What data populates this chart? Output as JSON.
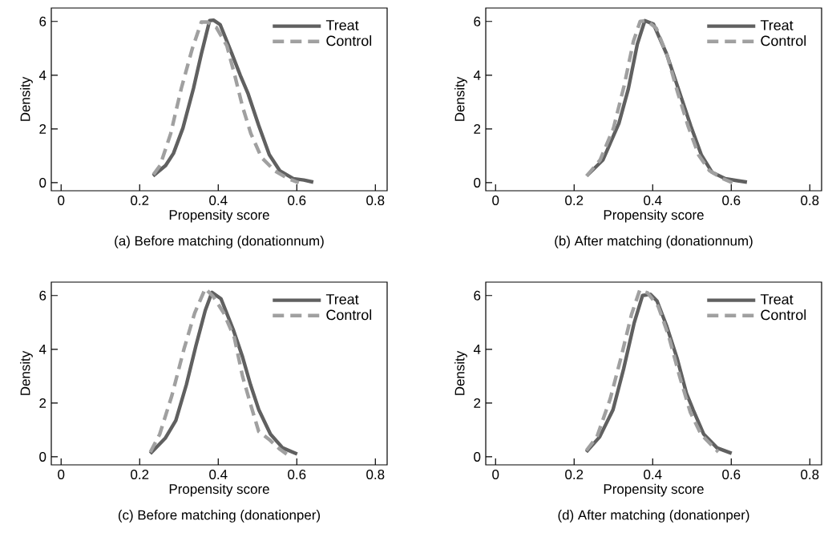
{
  "chart_data": [
    {
      "type": "line",
      "title": "(a) Before matching (donationnum)",
      "xlabel": "Propensity score",
      "ylabel": "Density",
      "xlim": [
        -0.025,
        0.83
      ],
      "ylim": [
        -0.3,
        6.5
      ],
      "xticks": [
        0,
        0.2,
        0.4,
        0.6,
        0.8
      ],
      "yticks": [
        0,
        2,
        4,
        6
      ],
      "legend": "top right",
      "series": [
        {
          "name": "Treat",
          "color": "#606060",
          "line_style": "solid",
          "x": [
            0.234,
            0.266,
            0.286,
            0.31,
            0.337,
            0.357,
            0.378,
            0.388,
            0.405,
            0.435,
            0.456,
            0.476,
            0.503,
            0.53,
            0.557,
            0.591,
            0.618,
            0.642
          ],
          "values": [
            0.25,
            0.64,
            1.09,
            2.03,
            3.51,
            4.79,
            6.03,
            6.05,
            5.88,
            4.79,
            4.0,
            3.31,
            2.13,
            1.04,
            0.44,
            0.15,
            0.1,
            0.02
          ]
        },
        {
          "name": "Control",
          "color": "#a0a0a0",
          "line_style": "dashed",
          "x": [
            0.235,
            0.252,
            0.279,
            0.306,
            0.334,
            0.357,
            0.371,
            0.395,
            0.422,
            0.442,
            0.462,
            0.483,
            0.51,
            0.544,
            0.578,
            0.605
          ],
          "values": [
            0.3,
            0.64,
            1.83,
            3.51,
            4.99,
            5.98,
            5.98,
            5.78,
            5.09,
            4.0,
            2.82,
            1.83,
            0.94,
            0.44,
            0.15,
            0.0
          ]
        }
      ]
    },
    {
      "type": "line",
      "title": "(b) After matching (donationnum)",
      "xlabel": "Propensity score",
      "ylabel": "Density",
      "xlim": [
        -0.025,
        0.83
      ],
      "ylim": [
        -0.3,
        6.5
      ],
      "xticks": [
        0,
        0.2,
        0.4,
        0.6,
        0.8
      ],
      "yticks": [
        0,
        2,
        4,
        6
      ],
      "legend": "top right",
      "series": [
        {
          "name": "Treat",
          "color": "#606060",
          "line_style": "solid",
          "x": [
            0.232,
            0.273,
            0.314,
            0.338,
            0.361,
            0.38,
            0.402,
            0.436,
            0.47,
            0.497,
            0.524,
            0.551,
            0.585,
            0.613,
            0.64
          ],
          "values": [
            0.25,
            0.84,
            2.21,
            3.49,
            5.16,
            6.03,
            5.9,
            4.77,
            3.29,
            2.11,
            1.03,
            0.39,
            0.15,
            0.08,
            0.02
          ]
        },
        {
          "name": "Control",
          "color": "#a0a0a0",
          "line_style": "dashed",
          "x": [
            0.232,
            0.266,
            0.3,
            0.327,
            0.351,
            0.368,
            0.385,
            0.409,
            0.436,
            0.463,
            0.49,
            0.517,
            0.545,
            0.579,
            0.603
          ],
          "values": [
            0.25,
            0.84,
            2.02,
            3.59,
            5.26,
            6.0,
            6.03,
            5.75,
            4.77,
            3.39,
            2.11,
            1.03,
            0.44,
            0.15,
            0.0
          ]
        }
      ]
    },
    {
      "type": "line",
      "title": "(c) Before matching (donationper)",
      "xlabel": "Propensity score",
      "ylabel": "Density",
      "xlim": [
        -0.025,
        0.83
      ],
      "ylim": [
        -0.3,
        6.5
      ],
      "xticks": [
        0,
        0.2,
        0.4,
        0.6,
        0.8
      ],
      "yticks": [
        0,
        2,
        4,
        6
      ],
      "legend": "top right",
      "series": [
        {
          "name": "Treat",
          "color": "#606060",
          "line_style": "solid",
          "x": [
            0.227,
            0.265,
            0.292,
            0.319,
            0.343,
            0.367,
            0.384,
            0.407,
            0.438,
            0.462,
            0.482,
            0.503,
            0.533,
            0.564,
            0.601
          ],
          "values": [
            0.12,
            0.69,
            1.35,
            2.69,
            4.12,
            5.45,
            6.12,
            5.88,
            4.74,
            3.71,
            2.69,
            1.76,
            0.84,
            0.33,
            0.1
          ]
        },
        {
          "name": "Control",
          "color": "#a0a0a0",
          "line_style": "dashed",
          "x": [
            0.227,
            0.251,
            0.282,
            0.313,
            0.34,
            0.367,
            0.387,
            0.414,
            0.441,
            0.462,
            0.482,
            0.503,
            0.53,
            0.557,
            0.577
          ],
          "values": [
            0.17,
            0.84,
            2.28,
            4.02,
            5.35,
            6.26,
            5.97,
            5.35,
            4.43,
            2.99,
            1.97,
            0.94,
            0.64,
            0.28,
            0.07
          ]
        }
      ]
    },
    {
      "type": "line",
      "title": "(d) After matching (donationper)",
      "xlabel": "Propensity score",
      "ylabel": "Density",
      "xlim": [
        -0.025,
        0.83
      ],
      "ylim": [
        -0.3,
        6.5
      ],
      "xticks": [
        0,
        0.2,
        0.4,
        0.6,
        0.8
      ],
      "yticks": [
        0,
        2,
        4,
        6
      ],
      "legend": "top right",
      "series": [
        {
          "name": "Treat",
          "color": "#606060",
          "line_style": "solid",
          "x": [
            0.231,
            0.265,
            0.299,
            0.326,
            0.353,
            0.374,
            0.394,
            0.411,
            0.435,
            0.462,
            0.486,
            0.503,
            0.53,
            0.564,
            0.601
          ],
          "values": [
            0.18,
            0.74,
            1.75,
            3.27,
            4.99,
            6.0,
            6.05,
            5.8,
            4.89,
            3.67,
            2.36,
            1.75,
            0.84,
            0.33,
            0.13
          ]
        },
        {
          "name": "Control",
          "color": "#a0a0a0",
          "line_style": "dashed",
          "x": [
            0.231,
            0.258,
            0.292,
            0.319,
            0.346,
            0.367,
            0.387,
            0.414,
            0.441,
            0.469,
            0.496,
            0.523,
            0.55,
            0.567
          ],
          "values": [
            0.23,
            0.74,
            2.16,
            3.67,
            5.29,
            6.2,
            6.1,
            5.6,
            4.48,
            2.97,
            1.65,
            0.84,
            0.43,
            0.18
          ]
        }
      ]
    }
  ]
}
